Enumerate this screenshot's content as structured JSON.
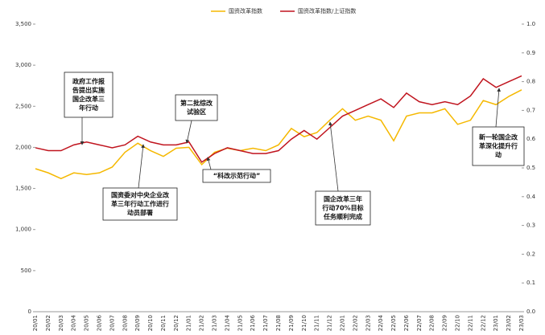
{
  "chart_data": {
    "type": "line",
    "categories": [
      "20/01",
      "20/02",
      "20/03",
      "20/04",
      "20/05",
      "20/06",
      "20/07",
      "20/08",
      "20/09",
      "20/10",
      "20/11",
      "20/12",
      "21/01",
      "21/02",
      "21/03",
      "21/04",
      "21/05",
      "21/06",
      "21/07",
      "21/08",
      "21/09",
      "21/10",
      "21/11",
      "21/12",
      "22/01",
      "22/02",
      "22/03",
      "22/04",
      "22/05",
      "22/06",
      "22/07",
      "22/08",
      "22/09",
      "22/10",
      "22/11",
      "22/12",
      "23/01",
      "23/02",
      "23/03"
    ],
    "series": [
      {
        "name": "国资改革指数",
        "color": "#f5b800",
        "axis": "y",
        "values": [
          1740,
          1690,
          1620,
          1690,
          1670,
          1690,
          1760,
          1940,
          2050,
          1960,
          1890,
          1990,
          2000,
          1790,
          1940,
          1990,
          1960,
          1990,
          1960,
          2030,
          2230,
          2130,
          2180,
          2330,
          2470,
          2330,
          2380,
          2330,
          2080,
          2380,
          2420,
          2420,
          2470,
          2280,
          2330,
          2570,
          2520,
          2620,
          2700
        ]
      },
      {
        "name": "国资改革指数/上证指数",
        "color": "#c0141e",
        "axis": "y2",
        "values": [
          0.57,
          0.56,
          0.56,
          0.58,
          0.59,
          0.58,
          0.57,
          0.58,
          0.61,
          0.59,
          0.58,
          0.58,
          0.59,
          0.52,
          0.55,
          0.57,
          0.56,
          0.55,
          0.55,
          0.56,
          0.6,
          0.63,
          0.6,
          0.64,
          0.68,
          0.7,
          0.72,
          0.74,
          0.71,
          0.76,
          0.73,
          0.72,
          0.73,
          0.72,
          0.75,
          0.81,
          0.78,
          0.8,
          0.82
        ]
      }
    ],
    "ylim": [
      0,
      3500
    ],
    "yticks": [
      {
        "value": 0,
        "label": "0"
      },
      {
        "value": 500,
        "label": "500"
      },
      {
        "value": 1000,
        "label": "1,000"
      },
      {
        "value": 1500,
        "label": "1,500"
      },
      {
        "value": 2000,
        "label": "2,000"
      },
      {
        "value": 2500,
        "label": "2,500"
      },
      {
        "value": 3000,
        "label": "3,000"
      },
      {
        "value": 3500,
        "label": "3,500"
      }
    ],
    "y2lim": [
      0,
      1
    ],
    "y2ticks": [
      {
        "value": 0,
        "label": "0.0"
      },
      0.1,
      0.2,
      0.3,
      0.4,
      0.5,
      0.6,
      0.7,
      0.8,
      0.9,
      {
        "value": 1,
        "label": "1.0"
      }
    ],
    "legend": "top",
    "annotations": [
      {
        "lines": [
          "政府工作报",
          "告提出实施",
          "国企改革三",
          "年行动"
        ]
      },
      {
        "lines": [
          "第二批综改",
          "试验区"
        ]
      },
      {
        "lines": [
          "“科改示范行动”"
        ]
      },
      {
        "lines": [
          "国资委对中央企业改",
          "革三年行动工作进行",
          "动员部署"
        ]
      },
      {
        "lines": [
          "国企改革三年",
          "行动70%目标",
          "任务顺利完成"
        ]
      },
      {
        "lines": [
          "新一轮国企改",
          "革深化提升行",
          "动"
        ]
      }
    ]
  }
}
